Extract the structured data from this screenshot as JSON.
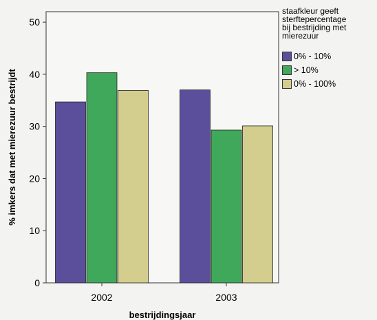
{
  "chart_data": {
    "type": "bar",
    "title": "",
    "xlabel": "bestrijdingsjaar",
    "ylabel": "% imkers dat met mierezuur bestrijdt",
    "categories": [
      "2002",
      "2003"
    ],
    "series": [
      {
        "name": "0% - 10%",
        "color": "#5b4f9c",
        "values": [
          34.7,
          37.0
        ]
      },
      {
        "name": "> 10%",
        "color": "#3fa85a",
        "values": [
          40.3,
          29.3
        ]
      },
      {
        "name": "0% - 100%",
        "color": "#d3cd8e",
        "values": [
          36.9,
          30.1
        ]
      }
    ],
    "ylim": [
      0,
      52
    ],
    "yticks": [
      0,
      10,
      20,
      30,
      40,
      50
    ],
    "grid": false,
    "legend": {
      "title": "staafkleur geeft\nsterftepercentage\nbij bestrijding met\nmierezuur",
      "placement": "right"
    }
  }
}
